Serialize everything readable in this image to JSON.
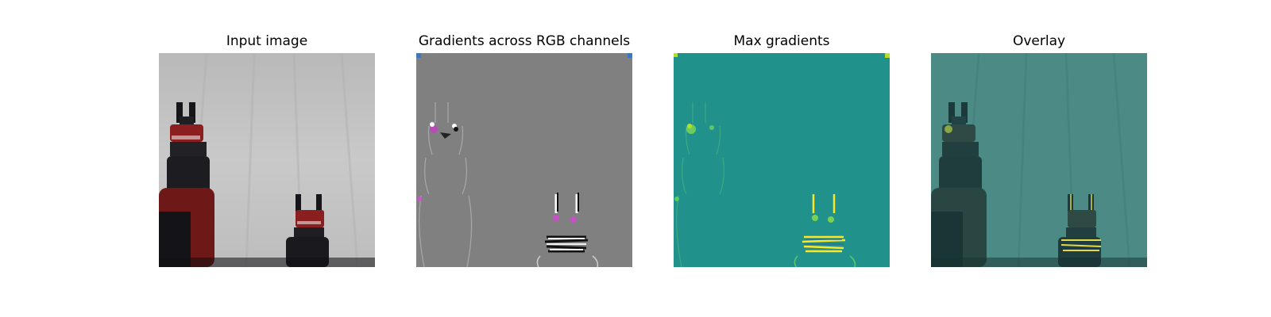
{
  "panels": [
    {
      "title": "Input image",
      "image": "photo of two red-and-black robot grippers in front of a white backdrop"
    },
    {
      "title": "Gradients across RGB channels",
      "image": "grey gradient map with colored edge highlights around both grippers"
    },
    {
      "title": "Max gradients",
      "image": "teal (viridis) max-gradient map with yellow highlights around both grippers"
    },
    {
      "title": "Overlay",
      "image": "teal overlay of gradients blended with the input photo"
    }
  ],
  "colors": {
    "backdrop": "#c7c7c7",
    "gripper_red": "#8b1e1e",
    "robot_dark": "#1a1a1e",
    "gradient_grey": "#808080",
    "viridis_teal": "#21918c",
    "viridis_yellow": "#fde725",
    "overlay_teal": "#4a8a84"
  }
}
